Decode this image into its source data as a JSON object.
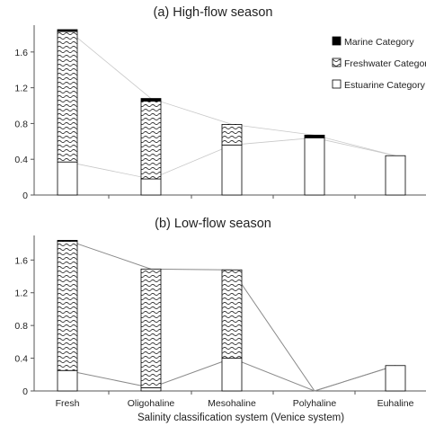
{
  "chart_data": [
    {
      "type": "bar",
      "stacked": true,
      "title": "(a) High-flow season",
      "xlabel": "",
      "ylabel": "",
      "categories": [
        "Fresh",
        "Oligohaline",
        "Mesohaline",
        "Polyhaline",
        "Euhaline"
      ],
      "series": [
        {
          "name": "Estuarine Category",
          "values": [
            0.37,
            0.18,
            0.56,
            0.64,
            0.44
          ]
        },
        {
          "name": "Freshwater Category",
          "values": [
            1.46,
            0.87,
            0.23,
            0.0,
            0.0
          ]
        },
        {
          "name": "Marine Category",
          "values": [
            0.02,
            0.03,
            0.0,
            0.03,
            0.0
          ]
        }
      ],
      "yticks": [
        "0",
        "0.4",
        "0.8",
        "1.2",
        "1.6"
      ],
      "ylim": [
        0,
        1.9
      ],
      "legend": "right",
      "grid": false
    },
    {
      "type": "bar",
      "stacked": true,
      "title": "(b) Low-flow season",
      "xlabel": "Salinity classification system (Venice system)",
      "ylabel": "",
      "categories": [
        "Fresh",
        "Oligohaline",
        "Mesohaline",
        "Polyhaline",
        "Euhaline"
      ],
      "series": [
        {
          "name": "Estuarine Category",
          "values": [
            0.25,
            0.04,
            0.4,
            0.0,
            0.31
          ]
        },
        {
          "name": "Freshwater Category",
          "values": [
            1.58,
            1.45,
            1.08,
            0.0,
            0.0
          ]
        },
        {
          "name": "Marine Category",
          "values": [
            0.01,
            0.0,
            0.0,
            0.0,
            0.0
          ]
        }
      ],
      "yticks": [
        "0",
        "0.4",
        "0.8",
        "1.2",
        "1.6"
      ],
      "ylim": [
        0,
        1.9
      ],
      "grid": false
    }
  ],
  "colors": {
    "marine": "#000000",
    "estuarine": "#ffffff",
    "freshwater_pattern": "#222222",
    "connector_high": "#c8c8c8",
    "connector_low": "#8a8a8a",
    "axis": "#555555"
  }
}
